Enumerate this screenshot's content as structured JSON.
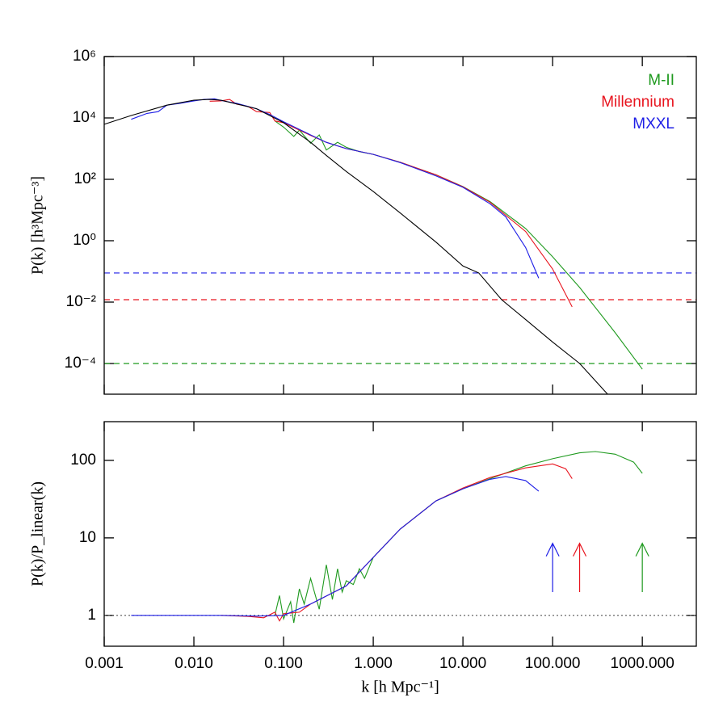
{
  "chart_data": [
    {
      "type": "line",
      "ylabel": "P(k) [h³Mpc⁻³]",
      "xscale": "log",
      "yscale": "log",
      "xlim": [
        0.001,
        4000
      ],
      "ylim": [
        1e-05,
        1000000
      ],
      "yticks": [
        {
          "value": 0.0001,
          "label": "10⁻⁴"
        },
        {
          "value": 0.01,
          "label": "10⁻²"
        },
        {
          "value": 1,
          "label": "10⁰"
        },
        {
          "value": 100,
          "label": "10²"
        },
        {
          "value": 10000,
          "label": "10⁴"
        },
        {
          "value": 1000000,
          "label": "10⁶"
        }
      ],
      "legend": "upper right",
      "series": [
        {
          "name": "M-II",
          "color": "#1f9a1f",
          "x": [
            0.08,
            0.1,
            0.13,
            0.15,
            0.2,
            0.25,
            0.3,
            0.4,
            0.5,
            0.7,
            1,
            2,
            5,
            10,
            20,
            50,
            100,
            200,
            500,
            1000
          ],
          "values": [
            8000,
            5000,
            2500,
            4000,
            1500,
            2800,
            900,
            1600,
            1100,
            800,
            650,
            360,
            140,
            58,
            19,
            2.5,
            0.3,
            0.03,
            0.001,
            6.5e-05
          ]
        },
        {
          "name": "Millennium",
          "color": "#e8141e",
          "x": [
            0.015,
            0.02,
            0.025,
            0.03,
            0.04,
            0.05,
            0.07,
            0.08,
            0.1,
            0.15,
            0.2,
            0.3,
            0.5,
            1,
            2,
            5,
            10,
            20,
            50,
            100,
            165
          ],
          "values": [
            35000,
            36000,
            40000,
            28000,
            24000,
            16000,
            15000,
            8000,
            7000,
            4000,
            2700,
            1600,
            1000,
            650,
            360,
            140,
            57,
            18,
            2,
            0.12,
            0.007
          ]
        },
        {
          "name": "MXXL",
          "color": "#1e1ee6",
          "x": [
            0.002,
            0.003,
            0.004,
            0.005,
            0.007,
            0.01,
            0.013,
            0.017,
            0.02,
            0.03,
            0.05,
            0.07,
            0.1,
            0.2,
            0.3,
            0.5,
            1,
            2,
            5,
            10,
            20,
            30,
            50,
            70
          ],
          "values": [
            9000,
            14000,
            16000,
            26000,
            30000,
            36000,
            40000,
            42000,
            37000,
            30000,
            20000,
            13000,
            7500,
            2800,
            1600,
            1000,
            650,
            350,
            130,
            55,
            16,
            6,
            0.6,
            0.06
          ]
        },
        {
          "color": "#000000",
          "x": [
            0.001,
            0.002,
            0.005,
            0.01,
            0.015,
            0.02,
            0.05,
            0.1,
            0.2,
            0.3,
            0.5,
            1,
            2,
            5,
            10,
            15,
            27,
            50,
            100,
            200,
            410
          ],
          "values": [
            6200,
            12000,
            26000,
            38000,
            40000,
            38000,
            20000,
            7000,
            1600,
            600,
            180,
            40,
            8,
            0.9,
            0.15,
            0.089,
            0.012,
            0.0027,
            0.0005,
            0.0001,
            1e-05
          ]
        }
      ],
      "hlines": [
        {
          "value": 0.089,
          "color": "#1e1ee6",
          "style": "dashed"
        },
        {
          "value": 0.012,
          "color": "#e8141e",
          "style": "dashed"
        },
        {
          "value": 0.0001,
          "color": "#1f9a1f",
          "style": "dashed"
        }
      ]
    },
    {
      "type": "line",
      "ylabel": "P(k)/P_linear(k)",
      "xlabel": "k [h Mpc⁻¹]",
      "xscale": "log",
      "yscale": "log",
      "xlim": [
        0.001,
        4000
      ],
      "ylim": [
        0.4,
        316
      ],
      "xticks": [
        {
          "value": 0.001,
          "label": "0.001"
        },
        {
          "value": 0.01,
          "label": "0.010"
        },
        {
          "value": 0.1,
          "label": "0.100"
        },
        {
          "value": 1,
          "label": "1.000"
        },
        {
          "value": 10,
          "label": "10.000"
        },
        {
          "value": 100,
          "label": "100.000"
        },
        {
          "value": 1000,
          "label": "1000.000"
        }
      ],
      "yticks": [
        1,
        10,
        100
      ],
      "series": [
        {
          "color": "#1f9a1f",
          "x": [
            0.08,
            0.09,
            0.1,
            0.12,
            0.13,
            0.15,
            0.17,
            0.2,
            0.25,
            0.3,
            0.35,
            0.4,
            0.45,
            0.5,
            0.6,
            0.7,
            0.8,
            1,
            2,
            5,
            10,
            20,
            50,
            100,
            200,
            300,
            500,
            800,
            1000
          ],
          "values": [
            1,
            1.8,
            0.9,
            1.5,
            0.8,
            2.2,
            1.4,
            3,
            1.2,
            4.5,
            1.6,
            4,
            2,
            2.8,
            2.5,
            4,
            3,
            5.6,
            13,
            30,
            43,
            58,
            85,
            105,
            125,
            130,
            120,
            95,
            68
          ]
        },
        {
          "color": "#e8141e",
          "x": [
            0.02,
            0.04,
            0.06,
            0.08,
            0.09,
            0.1,
            0.15,
            0.2,
            0.5,
            1,
            2,
            5,
            10,
            20,
            50,
            100,
            140,
            165
          ],
          "values": [
            1,
            0.97,
            0.93,
            1.1,
            0.85,
            1.05,
            1.1,
            1.4,
            2.4,
            5.6,
            13,
            30,
            44,
            60,
            80,
            90,
            78,
            58
          ]
        },
        {
          "color": "#1e1ee6",
          "x": [
            0.002,
            0.005,
            0.01,
            0.02,
            0.05,
            0.1,
            0.2,
            0.5,
            1,
            2,
            5,
            10,
            20,
            30,
            50,
            70
          ],
          "values": [
            1,
            1,
            1,
            1,
            0.98,
            1,
            1.4,
            2.4,
            5.6,
            13,
            30,
            43,
            57,
            62,
            55,
            40
          ]
        }
      ],
      "hlines": [
        {
          "value": 1,
          "color": "#555555",
          "style": "dotted"
        }
      ],
      "arrows": [
        {
          "x": 100,
          "y0": 2,
          "y1": 8.5,
          "color": "#1e1ee6"
        },
        {
          "x": 200,
          "y0": 2,
          "y1": 8.5,
          "color": "#e8141e"
        },
        {
          "x": 1000,
          "y0": 2,
          "y1": 8.5,
          "color": "#1f9a1f"
        }
      ]
    }
  ]
}
